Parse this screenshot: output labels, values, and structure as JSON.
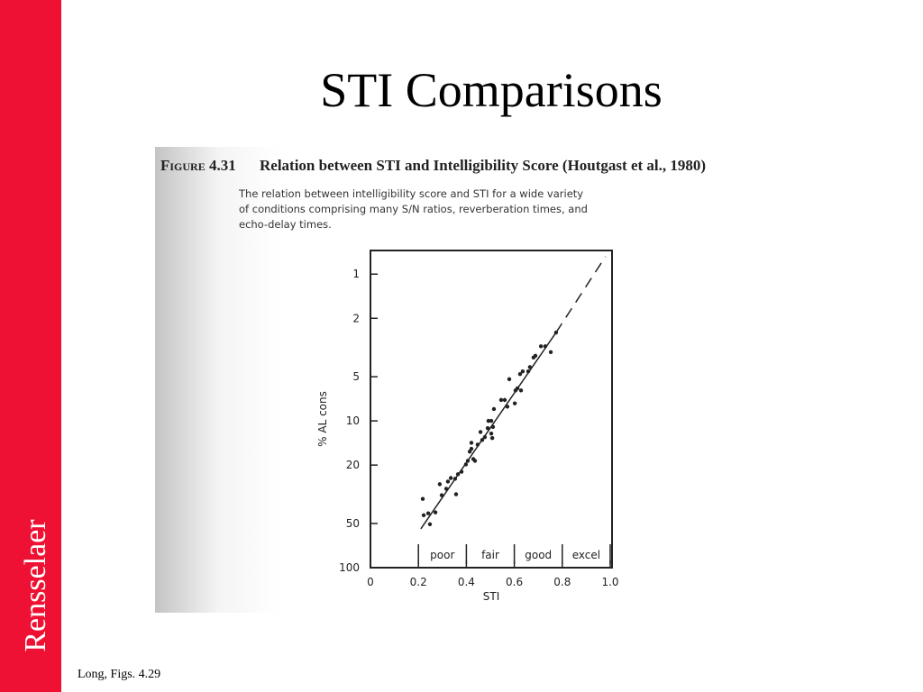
{
  "slide": {
    "title": "STI Comparisons",
    "sidebar": "Rensselaer",
    "footer": "Long, Figs. 4.29"
  },
  "figure": {
    "number": "Figure 4.31",
    "caption": "Relation between STI and Intelligibility Score (Houtgast et al., 1980)",
    "description": [
      "The relation between intelligibility score and STI for a wide variety",
      "of conditions comprising many S/N ratios, reverberation times, and",
      "echo-delay times."
    ]
  },
  "chart_data": {
    "type": "scatter",
    "x_label": "STI",
    "y_label": "% AL cons",
    "color": "#222222",
    "log_y": true,
    "xlim": [
      0,
      1
    ],
    "ylim": [
      100,
      0.69
    ],
    "xticks": [
      0,
      0.2,
      0.4,
      0.6,
      0.8,
      {
        "value": 1,
        "label": "1.0"
      }
    ],
    "yticks": [
      1,
      2,
      5,
      10,
      20,
      50,
      100
    ],
    "x": [
      0.218,
      0.222,
      0.241,
      0.248,
      0.271,
      0.289,
      0.297,
      0.316,
      0.323,
      0.335,
      0.353,
      0.357,
      0.365,
      0.38,
      0.398,
      0.406,
      0.414,
      0.421,
      0.421,
      0.429,
      0.436,
      0.447,
      0.459,
      0.466,
      0.477,
      0.489,
      0.492,
      0.504,
      0.504,
      0.508,
      0.511,
      0.515,
      0.545,
      0.56,
      0.571,
      0.579,
      0.602,
      0.605,
      0.613,
      0.624,
      0.628,
      0.635,
      0.658,
      0.665,
      0.68,
      0.688,
      0.711,
      0.729,
      0.752,
      0.774
    ],
    "values": [
      34,
      43.9,
      42.6,
      50.6,
      42,
      27,
      32.1,
      29,
      25.9,
      24.5,
      24.8,
      31.6,
      23.1,
      22.2,
      19.8,
      18.7,
      16.2,
      14.1,
      15.5,
      18.2,
      18.7,
      14.5,
      11.9,
      13.5,
      12.9,
      11.2,
      10,
      10,
      12.2,
      13.1,
      11,
      8.3,
      7.2,
      7.2,
      8,
      5.2,
      7.6,
      6.2,
      6,
      4.8,
      6.2,
      4.6,
      4.6,
      4.3,
      3.7,
      3.6,
      3.1,
      3.1,
      3.4,
      2.5
    ],
    "fit_lines": [
      {
        "x": [
          0.21,
          0.774
        ],
        "values": [
          54.4,
          2.5
        ],
        "style": "solid"
      },
      {
        "x": [
          0.774,
          0.98
        ],
        "values": [
          2.5,
          0.76
        ],
        "style": "dashed"
      }
    ],
    "ratings": {
      "labels": [
        "poor",
        "fair",
        "good",
        "excel"
      ],
      "edges": [
        0.2,
        0.4,
        0.6,
        0.8,
        1
      ]
    }
  }
}
